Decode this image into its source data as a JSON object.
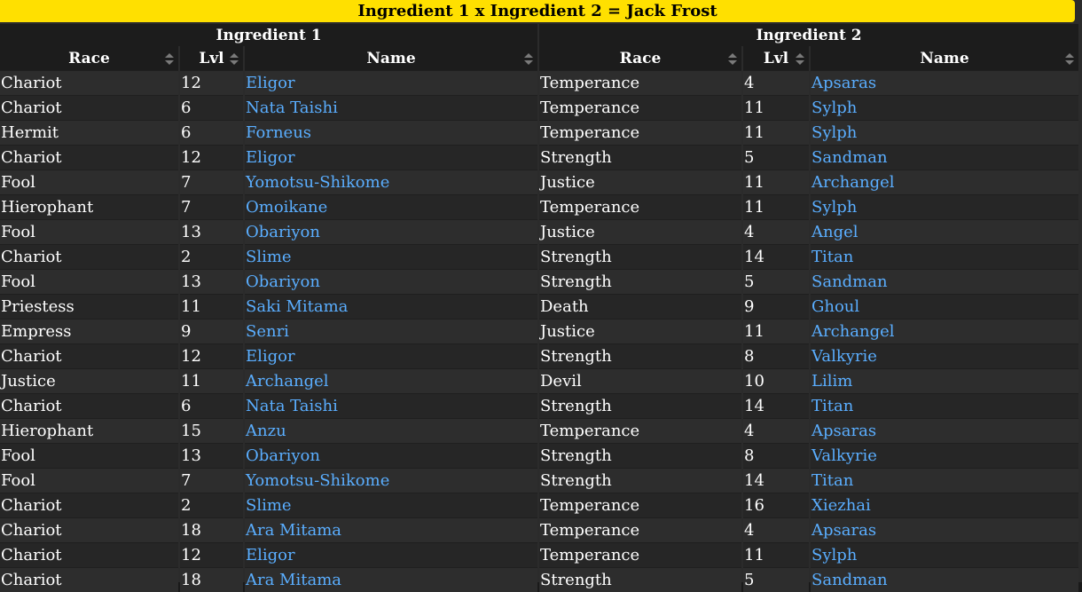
{
  "title": "Ingredient 1 x Ingredient 2 = Jack Frost",
  "groups": [
    "Ingredient 1",
    "Ingredient 2"
  ],
  "columns": [
    "Race",
    "Lvl",
    "Name",
    "Race",
    "Lvl",
    "Name"
  ],
  "rows": [
    [
      "Chariot",
      "12",
      "Eligor",
      "Temperance",
      "4",
      "Apsaras"
    ],
    [
      "Chariot",
      "6",
      "Nata Taishi",
      "Temperance",
      "11",
      "Sylph"
    ],
    [
      "Hermit",
      "6",
      "Forneus",
      "Temperance",
      "11",
      "Sylph"
    ],
    [
      "Chariot",
      "12",
      "Eligor",
      "Strength",
      "5",
      "Sandman"
    ],
    [
      "Fool",
      "7",
      "Yomotsu-Shikome",
      "Justice",
      "11",
      "Archangel"
    ],
    [
      "Hierophant",
      "7",
      "Omoikane",
      "Temperance",
      "11",
      "Sylph"
    ],
    [
      "Fool",
      "13",
      "Obariyon",
      "Justice",
      "4",
      "Angel"
    ],
    [
      "Chariot",
      "2",
      "Slime",
      "Strength",
      "14",
      "Titan"
    ],
    [
      "Fool",
      "13",
      "Obariyon",
      "Strength",
      "5",
      "Sandman"
    ],
    [
      "Priestess",
      "11",
      "Saki Mitama",
      "Death",
      "9",
      "Ghoul"
    ],
    [
      "Empress",
      "9",
      "Senri",
      "Justice",
      "11",
      "Archangel"
    ],
    [
      "Chariot",
      "12",
      "Eligor",
      "Strength",
      "8",
      "Valkyrie"
    ],
    [
      "Justice",
      "11",
      "Archangel",
      "Devil",
      "10",
      "Lilim"
    ],
    [
      "Chariot",
      "6",
      "Nata Taishi",
      "Strength",
      "14",
      "Titan"
    ],
    [
      "Hierophant",
      "15",
      "Anzu",
      "Temperance",
      "4",
      "Apsaras"
    ],
    [
      "Fool",
      "13",
      "Obariyon",
      "Strength",
      "8",
      "Valkyrie"
    ],
    [
      "Fool",
      "7",
      "Yomotsu-Shikome",
      "Strength",
      "14",
      "Titan"
    ],
    [
      "Chariot",
      "2",
      "Slime",
      "Temperance",
      "16",
      "Xiezhai"
    ],
    [
      "Chariot",
      "18",
      "Ara Mitama",
      "Temperance",
      "4",
      "Apsaras"
    ],
    [
      "Chariot",
      "12",
      "Eligor",
      "Temperance",
      "11",
      "Sylph"
    ],
    [
      "Chariot",
      "18",
      "Ara Mitama",
      "Strength",
      "5",
      "Sandman"
    ]
  ]
}
